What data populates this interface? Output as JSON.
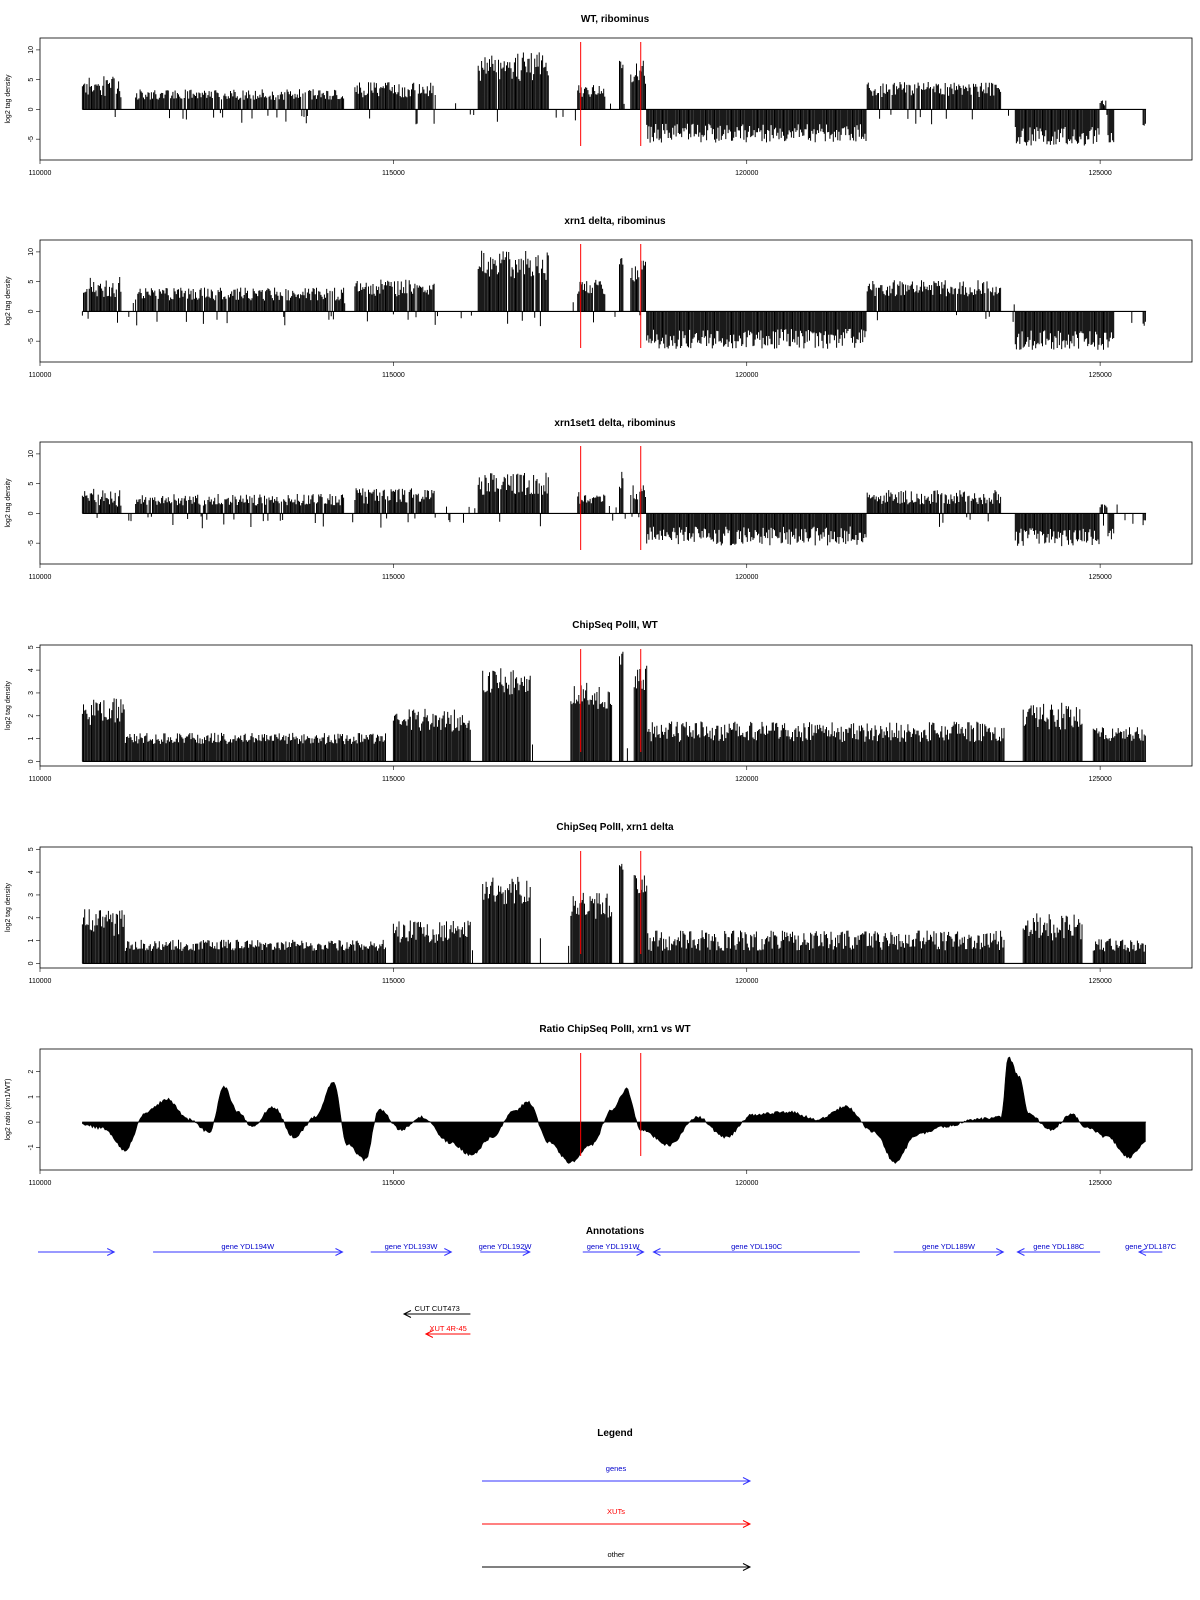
{
  "colors": {
    "track": "#000000",
    "marker": "#ff0000",
    "gene": "#3333ff",
    "gene_label": "#0000cc",
    "xut": "#ff0000",
    "other": "#000000"
  },
  "chart_data": [
    {
      "type": "bar",
      "title": "WT, ribominus",
      "ylabel": "log2 tag density",
      "xlim": [
        110000,
        126300
      ],
      "ylim": [
        -8.5,
        12
      ],
      "yticks": [
        "10",
        "5",
        "0",
        "-5"
      ],
      "xticks": [
        "110000",
        "115000",
        "120000",
        "125000"
      ],
      "markers": [
        117650,
        118500
      ],
      "series": []
    },
    {
      "type": "bar",
      "title": "xrn1 delta, ribominus",
      "ylabel": "log2 tag density",
      "xlim": [
        110000,
        126300
      ],
      "ylim": [
        -8.5,
        12
      ],
      "yticks": [
        "10",
        "5",
        "0",
        "-5"
      ],
      "xticks": [
        "110000",
        "115000",
        "120000",
        "125000"
      ],
      "markers": [
        117650,
        118500
      ],
      "series": []
    },
    {
      "type": "bar",
      "title": "xrn1set1 delta, ribominus",
      "ylabel": "log2 tag density",
      "xlim": [
        110000,
        126300
      ],
      "ylim": [
        -8.5,
        12
      ],
      "yticks": [
        "10",
        "5",
        "0",
        "-5"
      ],
      "xticks": [
        "110000",
        "115000",
        "120000",
        "125000"
      ],
      "markers": [
        117650,
        118500
      ],
      "series": []
    },
    {
      "type": "bar",
      "title": "ChipSeq PolII, WT",
      "ylabel": "log2 tag density",
      "xlim": [
        110000,
        126300
      ],
      "ylim": [
        -0.2,
        5.1
      ],
      "yticks": [
        "5",
        "4",
        "3",
        "2",
        "1",
        "0"
      ],
      "xticks": [
        "110000",
        "115000",
        "120000",
        "125000"
      ],
      "markers": [
        117650,
        118500
      ],
      "series": []
    },
    {
      "type": "bar",
      "title": "ChipSeq PolII, xrn1 delta",
      "ylabel": "log2 tag density",
      "xlim": [
        110000,
        126300
      ],
      "ylim": [
        -0.2,
        5.1
      ],
      "yticks": [
        "5",
        "4",
        "3",
        "2",
        "1",
        "0"
      ],
      "xticks": [
        "110000",
        "115000",
        "120000",
        "125000"
      ],
      "markers": [
        117650,
        118500
      ],
      "series": []
    },
    {
      "type": "area",
      "title": "Ratio ChipSeq PolII, xrn1 vs WT",
      "ylabel": "log2 ratio (xrn1/WT)",
      "xlim": [
        110000,
        126300
      ],
      "ylim": [
        -1.9,
        2.9
      ],
      "yticks": [
        "2",
        "1",
        "0",
        "-1"
      ],
      "xticks": [
        "110000",
        "115000",
        "120000",
        "125000"
      ],
      "markers": [
        117650,
        118500
      ],
      "series": []
    }
  ],
  "annotations": {
    "title": "Annotations",
    "features": [
      {
        "label": "",
        "start": 110000,
        "end": 111050,
        "strand": "+",
        "kind": "gene"
      },
      {
        "label": "gene YDL194W",
        "start": 111600,
        "end": 114280,
        "strand": "+",
        "kind": "gene"
      },
      {
        "label": "gene YDL193W",
        "start": 114680,
        "end": 115820,
        "strand": "+",
        "kind": "gene"
      },
      {
        "label": "gene YDL192W",
        "start": 116230,
        "end": 116930,
        "strand": "+",
        "kind": "gene"
      },
      {
        "label": "gene YDL191W",
        "start": 117680,
        "end": 118540,
        "strand": "+",
        "kind": "gene"
      },
      {
        "label": "gene YDL190C",
        "start": 118680,
        "end": 121600,
        "strand": "-",
        "kind": "gene"
      },
      {
        "label": "gene YDL189W",
        "start": 122080,
        "end": 123630,
        "strand": "+",
        "kind": "gene"
      },
      {
        "label": "gene YDL188C",
        "start": 123830,
        "end": 125000,
        "strand": "-",
        "kind": "gene"
      },
      {
        "label": "gene YDL187C",
        "start": 125550,
        "end": 125880,
        "strand": "-",
        "kind": "gene"
      },
      {
        "label": "CUT CUT473",
        "start": 115150,
        "end": 116090,
        "strand": "-",
        "kind": "other"
      },
      {
        "label": "XUT 4R-45",
        "start": 115460,
        "end": 116090,
        "strand": "-",
        "kind": "xut"
      }
    ]
  },
  "legend": {
    "title": "Legend",
    "items": [
      {
        "label": "genes",
        "kind": "gene"
      },
      {
        "label": "XUTs",
        "kind": "xut"
      },
      {
        "label": "other",
        "kind": "other"
      }
    ]
  }
}
